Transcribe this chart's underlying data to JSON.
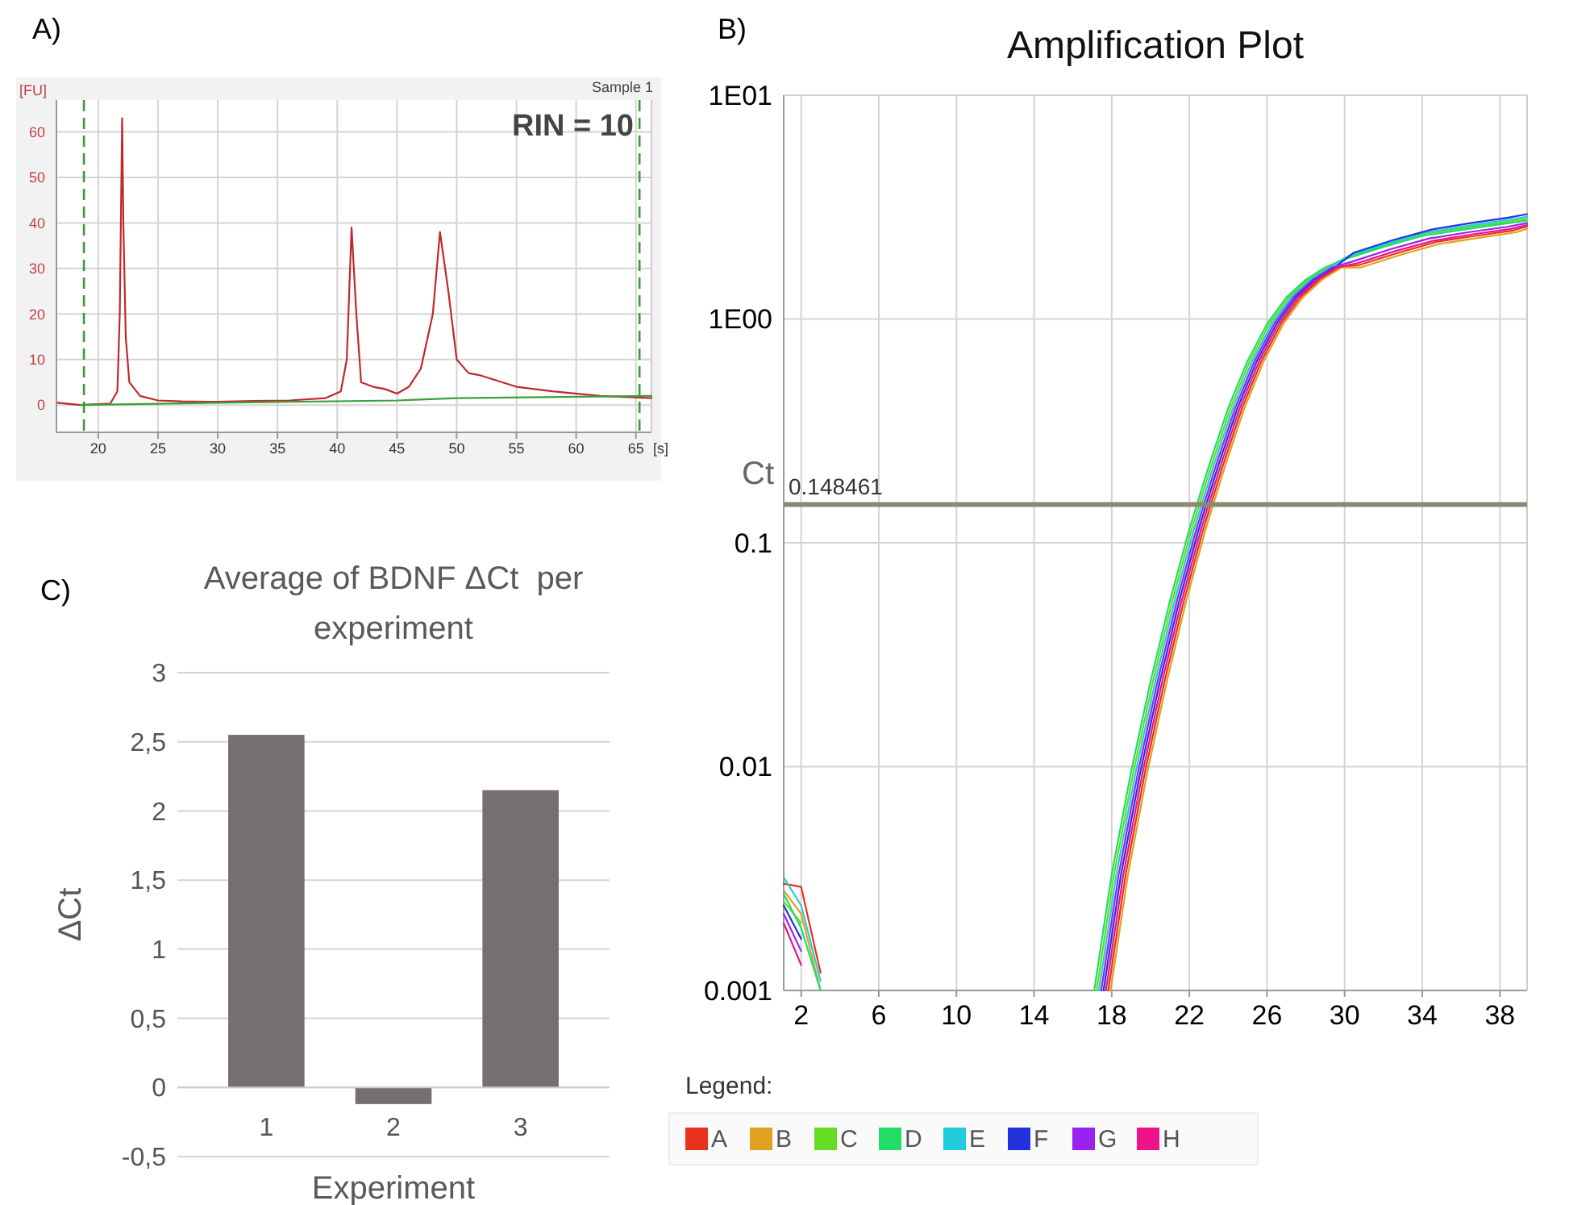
{
  "chart_data": [
    {
      "type": "line",
      "ylabel": "[FU]",
      "xlabel": "[s]",
      "annotations": [
        "A)",
        "Sample 1",
        "RIN = 10"
      ],
      "xlim": [
        16.5,
        66.3
      ],
      "ylim": [
        -6,
        67
      ],
      "xticks": [
        20,
        25,
        30,
        35,
        40,
        45,
        50,
        55,
        60,
        65
      ],
      "yticks": [
        0,
        10,
        20,
        30,
        40,
        50,
        60
      ],
      "grid": true,
      "ref_lines": [
        {
          "axis": "x",
          "value": 18.8,
          "color": "#3a9a3a",
          "line_style": "dashed"
        },
        {
          "axis": "x",
          "value": 65.3,
          "color": "#3a9a3a",
          "line_style": "dashed"
        }
      ],
      "series": [
        {
          "color": "#c0282d",
          "x": [
            16.6,
            18.5,
            21,
            21.6,
            21.8,
            22,
            22.1,
            22.3,
            22.6,
            23.5,
            25,
            27,
            30,
            33,
            36,
            39,
            40.3,
            40.8,
            41.2,
            41.6,
            42,
            43,
            44,
            45,
            46,
            47,
            48,
            48.6,
            49.3,
            50,
            51,
            52,
            55,
            58,
            62,
            66.3
          ],
          "values": [
            0.5,
            0,
            0.3,
            3,
            20,
            63,
            40,
            15,
            5,
            2,
            1,
            0.8,
            0.7,
            0.9,
            1,
            1.5,
            3,
            10,
            39,
            20,
            5,
            4,
            3.5,
            2.5,
            4,
            8,
            20,
            38,
            25,
            10,
            7,
            6.5,
            4,
            3,
            2,
            1.5
          ]
        },
        {
          "color": "#3aa03a",
          "x": [
            18.5,
            30,
            45,
            50,
            66.3
          ],
          "values": [
            0,
            0.5,
            1,
            1.5,
            2
          ]
        }
      ]
    },
    {
      "type": "line",
      "title": "Amplification Plot",
      "annotations": [
        "B)",
        "Ct"
      ],
      "legend_title": "Legend:",
      "legend": "bottom",
      "log": "y",
      "grid": true,
      "xlim": [
        1.1,
        39.4
      ],
      "ylim": [
        0.001,
        10
      ],
      "xticks": [
        2,
        6,
        10,
        14,
        18,
        22,
        26,
        30,
        34,
        38
      ],
      "yticks": [
        {
          "value": 10,
          "label": "1E01"
        },
        {
          "value": 1,
          "label": "1E00"
        },
        0.1,
        0.01,
        0.001
      ],
      "ref_lines": [
        {
          "axis": "y",
          "value": 0.148461,
          "label": "0.148461",
          "color": "#8a8a72"
        }
      ],
      "series": [
        {
          "name": "A",
          "color": "#e8321e",
          "x": [
            1.1,
            2,
            3,
            4,
            17.82,
            18.72,
            19.72,
            20.72,
            21.72,
            22.72,
            23.72,
            24.72,
            25.72,
            26.72,
            27.72,
            28.72,
            29.72,
            30.72,
            32.72,
            34.72,
            36.72,
            38.72,
            39.4
          ],
          "values": [
            0.003,
            0.0029,
            0.0012,
            null,
            0.001,
            0.0033,
            0.0095,
            0.024,
            0.055,
            0.115,
            0.22,
            0.4,
            0.65,
            0.95,
            1.25,
            1.5,
            1.7,
            1.74,
            1.97,
            2.21,
            2.35,
            2.49,
            2.59
          ]
        },
        {
          "name": "B",
          "color": "#e0a020",
          "x": [
            1.1,
            2,
            3,
            4,
            17.94,
            18.84,
            19.84,
            20.84,
            21.84,
            22.84,
            23.84,
            24.84,
            25.84,
            26.84,
            27.84,
            28.84,
            29.84,
            30.84,
            32.84,
            34.84,
            36.84,
            38.84,
            39.4
          ],
          "values": [
            0.0028,
            0.0022,
            0.001,
            null,
            0.001,
            0.0033,
            0.0095,
            0.024,
            0.055,
            0.115,
            0.22,
            0.4,
            0.65,
            0.95,
            1.25,
            1.5,
            1.7,
            1.7,
            1.93,
            2.16,
            2.3,
            2.44,
            2.53
          ]
        },
        {
          "name": "C",
          "color": "#66dd22",
          "x": [
            1.1,
            2,
            3,
            4,
            17.22,
            18.12,
            19.12,
            20.12,
            21.12,
            22.12,
            23.12,
            24.12,
            25.12,
            26.12,
            27.12,
            28.12,
            29.12,
            30.12,
            32.12,
            34.12,
            36.12,
            38.12,
            39.4
          ],
          "values": [
            0.0025,
            0.002,
            null,
            null,
            0.001,
            0.0033,
            0.0095,
            0.024,
            0.055,
            0.115,
            0.22,
            0.4,
            0.65,
            0.95,
            1.25,
            1.5,
            1.7,
            1.89,
            2.14,
            2.4,
            2.55,
            2.7,
            2.8
          ]
        },
        {
          "name": "D",
          "color": "#22dd66",
          "x": [
            1.1,
            2,
            3,
            4,
            17.1,
            18,
            19,
            20,
            21,
            22,
            23,
            24,
            25,
            26,
            27,
            28,
            29,
            30,
            32,
            34,
            36,
            38,
            39.4
          ],
          "values": [
            0.0027,
            0.0019,
            0.001,
            null,
            0.001,
            0.0033,
            0.0095,
            0.024,
            0.055,
            0.115,
            0.22,
            0.4,
            0.65,
            0.95,
            1.25,
            1.5,
            1.7,
            1.85,
            2.1,
            2.35,
            2.5,
            2.65,
            2.75
          ]
        },
        {
          "name": "E",
          "color": "#22ccdd",
          "x": [
            1.1,
            2,
            3,
            4,
            17.34,
            18.24,
            19.24,
            20.24,
            21.24,
            22.24,
            23.24,
            24.24,
            25.24,
            26.24,
            27.24,
            28.24,
            29.24,
            30.24,
            32.24,
            34.24,
            36.24,
            38.24,
            39.4
          ],
          "values": [
            0.0032,
            0.0024,
            0.0011,
            null,
            0.001,
            0.0033,
            0.0095,
            0.024,
            0.055,
            0.115,
            0.22,
            0.4,
            0.65,
            0.95,
            1.25,
            1.5,
            1.7,
            1.92,
            2.18,
            2.44,
            2.6,
            2.76,
            2.86
          ]
        },
        {
          "name": "F",
          "color": "#2233dd",
          "x": [
            1.1,
            2,
            3,
            4,
            17.58,
            18.48,
            19.48,
            20.48,
            21.48,
            22.48,
            23.48,
            24.48,
            25.48,
            26.48,
            27.48,
            28.48,
            29.48,
            30.48,
            32.48,
            34.48,
            36.48,
            38.48,
            39.4
          ],
          "values": [
            0.0024,
            0.0017,
            null,
            null,
            0.001,
            0.0033,
            0.0095,
            0.024,
            0.055,
            0.115,
            0.22,
            0.4,
            0.65,
            0.95,
            1.25,
            1.5,
            1.7,
            1.98,
            2.25,
            2.51,
            2.68,
            2.84,
            2.94
          ]
        },
        {
          "name": "G",
          "color": "#9922ee",
          "x": [
            1.1,
            2,
            3,
            4,
            17.46,
            18.36,
            19.36,
            20.36,
            21.36,
            22.36,
            23.36,
            24.36,
            25.36,
            26.36,
            27.36,
            28.36,
            29.36,
            30.36,
            32.36,
            34.36,
            36.36,
            38.36,
            39.4
          ],
          "values": [
            0.0022,
            0.0015,
            null,
            null,
            0.001,
            0.0033,
            0.0095,
            0.024,
            0.055,
            0.115,
            0.22,
            0.4,
            0.65,
            0.95,
            1.25,
            1.5,
            1.7,
            1.8,
            2.05,
            2.29,
            2.44,
            2.58,
            2.68
          ]
        },
        {
          "name": "H",
          "color": "#ee1188",
          "x": [
            1.1,
            2,
            3,
            4,
            17.7,
            18.6,
            19.6,
            20.6,
            21.6,
            22.6,
            23.6,
            24.6,
            25.6,
            26.6,
            27.6,
            28.6,
            29.6,
            30.6,
            32.6,
            34.6,
            36.6,
            38.6,
            39.4
          ],
          "values": [
            0.002,
            0.0013,
            null,
            null,
            0.001,
            0.0033,
            0.0095,
            0.024,
            0.055,
            0.115,
            0.22,
            0.4,
            0.65,
            0.95,
            1.25,
            1.5,
            1.7,
            1.77,
            2.01,
            2.24,
            2.39,
            2.53,
            2.63
          ]
        }
      ]
    },
    {
      "type": "bar",
      "title": "Average of BDNF ΔCt  per experiment",
      "xlabel": "Experiment",
      "ylabel": "ΔCt",
      "annotations": [
        "C)"
      ],
      "categories": [
        "1",
        "2",
        "3"
      ],
      "values": [
        2.55,
        -0.12,
        2.15
      ],
      "color": "#756f6f",
      "grid": "y",
      "ylim": [
        -0.5,
        3
      ],
      "yticks": [
        {
          "value": -0.5,
          "label": "-0,5"
        },
        0,
        {
          "value": 0.5,
          "label": "0,5"
        },
        1,
        {
          "value": 1.5,
          "label": "1,5"
        },
        2,
        {
          "value": 2.5,
          "label": "2,5"
        },
        3
      ]
    }
  ]
}
